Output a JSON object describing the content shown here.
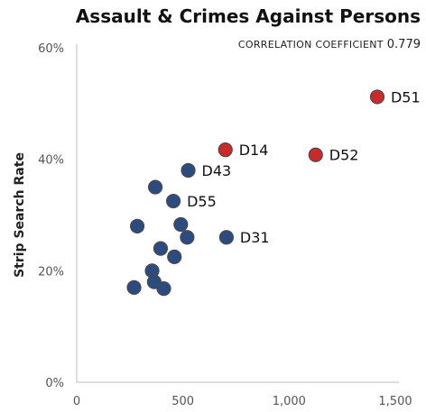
{
  "chart_data": {
    "type": "scatter",
    "title": "Assault & Crimes Against Persons",
    "subtitle_label": "CORRELATION COEFFICIENT",
    "subtitle_value": "0.779",
    "xlabel": "",
    "ylabel": "Strip Search Rate",
    "xlim": [
      0,
      1500
    ],
    "ylim": [
      0,
      60
    ],
    "x_ticks": [
      0,
      500,
      1000,
      1500
    ],
    "x_tick_labels": [
      "0",
      "500",
      "1,000",
      "1,500"
    ],
    "y_ticks": [
      0,
      20,
      40,
      60
    ],
    "y_tick_labels": [
      "0%",
      "20%",
      "40%",
      "60%"
    ],
    "grid": false,
    "colors": {
      "default": "#2c4b80",
      "highlight": "#cc2a2a",
      "stroke": "#4a4a4a"
    },
    "points": [
      {
        "x": 1415,
        "y": 51.2,
        "label": "D51",
        "highlight": true
      },
      {
        "x": 700,
        "y": 41.7,
        "label": "D14",
        "highlight": true
      },
      {
        "x": 1125,
        "y": 40.8,
        "label": "D52",
        "highlight": true
      },
      {
        "x": 525,
        "y": 38.0,
        "label": "D43",
        "highlight": false
      },
      {
        "x": 370,
        "y": 35.0,
        "label": "",
        "highlight": false
      },
      {
        "x": 455,
        "y": 32.5,
        "label": "D55",
        "highlight": false
      },
      {
        "x": 285,
        "y": 28.0,
        "label": "",
        "highlight": false
      },
      {
        "x": 490,
        "y": 28.3,
        "label": "",
        "highlight": false
      },
      {
        "x": 520,
        "y": 26.0,
        "label": "",
        "highlight": false
      },
      {
        "x": 705,
        "y": 26.0,
        "label": "D31",
        "highlight": false
      },
      {
        "x": 395,
        "y": 24.0,
        "label": "",
        "highlight": false
      },
      {
        "x": 460,
        "y": 22.5,
        "label": "",
        "highlight": false
      },
      {
        "x": 355,
        "y": 20.0,
        "label": "",
        "highlight": false
      },
      {
        "x": 365,
        "y": 18.0,
        "label": "",
        "highlight": false
      },
      {
        "x": 270,
        "y": 17.0,
        "label": "",
        "highlight": false
      },
      {
        "x": 410,
        "y": 16.8,
        "label": "",
        "highlight": false
      }
    ]
  }
}
